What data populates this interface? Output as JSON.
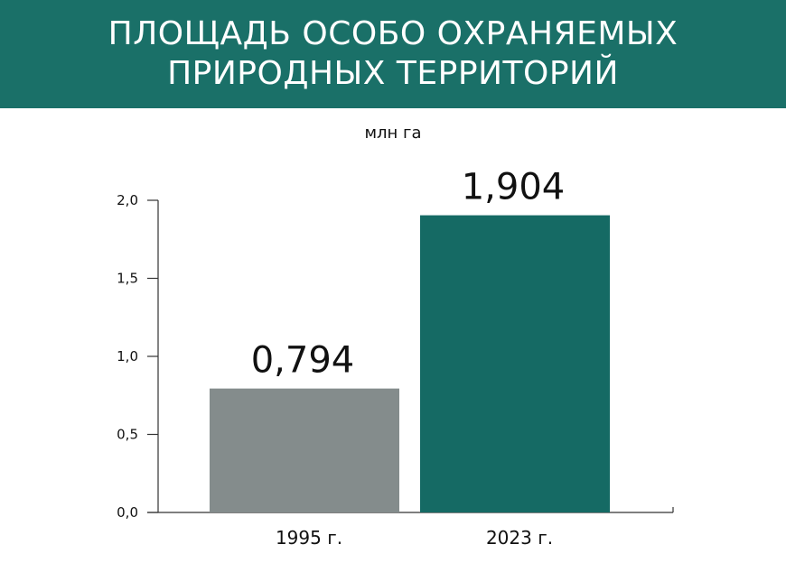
{
  "title": {
    "line1": "ПЛОЩАДЬ ОСОБО ОХРАНЯЕМЫХ",
    "line2": "ПРИРОДНЫХ ТЕРРИТОРИЙ"
  },
  "colors": {
    "header_bg": "#1a7068",
    "bar_1995": "#848c8c",
    "bar_2023": "#156a64",
    "axis": "#333333"
  },
  "chart_data": {
    "type": "bar",
    "title": "ПЛОЩАДЬ ОСОБО ОХРАНЯЕМЫХ ПРИРОДНЫХ ТЕРРИТОРИЙ",
    "unit": "млн га",
    "categories": [
      "1995 г.",
      "2023 г."
    ],
    "values": [
      0.794,
      1.904
    ],
    "value_labels": [
      "0,794",
      "1,904"
    ],
    "ylim": [
      0,
      2.0
    ],
    "yticks": [
      0.0,
      0.5,
      1.0,
      1.5,
      2.0
    ],
    "ytick_labels": [
      "0,0",
      "0,5",
      "1,0",
      "1,5",
      "2,0"
    ],
    "bar_colors": [
      "#848c8c",
      "#156a64"
    ],
    "grid": false,
    "legend": "none"
  }
}
